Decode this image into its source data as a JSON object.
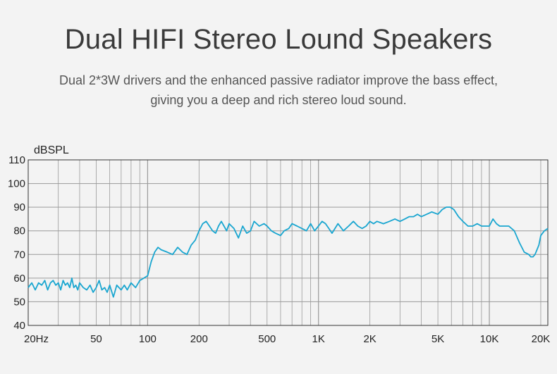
{
  "header": {
    "title": "Dual HIFI Stereo Lound Speakers",
    "subtitle_line1": "Dual 2*3W drivers and the enhanced passive radiator improve the bass effect,",
    "subtitle_line2": "giving you a deep and rich stereo loud sound."
  },
  "chart_data": {
    "type": "line",
    "title": "",
    "xlabel": "",
    "ylabel": "dBSPL",
    "x_scale": "log",
    "xlim": [
      20,
      22000
    ],
    "ylim": [
      40,
      110
    ],
    "grid": true,
    "y_ticks": [
      40,
      50,
      60,
      70,
      80,
      90,
      100,
      110
    ],
    "y_tick_labels": [
      "40",
      "50",
      "60",
      "70",
      "80",
      "90",
      "100",
      "110"
    ],
    "x_ticks": [
      20,
      50,
      100,
      200,
      500,
      1000,
      2000,
      5000,
      10000,
      20000
    ],
    "x_tick_labels": [
      "20Hz",
      "50",
      "100",
      "200",
      "500",
      "1K",
      "2K",
      "5K",
      "10K",
      "20K"
    ],
    "line_color": "#1aa6d0",
    "grid_color": "#9a9a9a",
    "series": [
      {
        "x": [
          20,
          21,
          22,
          23,
          24,
          25,
          26,
          27,
          28,
          29,
          30,
          31,
          32,
          33,
          34,
          35,
          36,
          37,
          38,
          39,
          40,
          42,
          44,
          46,
          48,
          50,
          52,
          54,
          56,
          58,
          60,
          63,
          66,
          70,
          73,
          76,
          80,
          85,
          90,
          95,
          100,
          105,
          110,
          115,
          120,
          130,
          140,
          150,
          160,
          170,
          180,
          190,
          200,
          210,
          220,
          230,
          240,
          250,
          260,
          270,
          280,
          290,
          300,
          320,
          340,
          360,
          380,
          400,
          420,
          450,
          480,
          500,
          530,
          560,
          600,
          630,
          670,
          700,
          750,
          800,
          850,
          900,
          950,
          1000,
          1050,
          1100,
          1150,
          1200,
          1300,
          1400,
          1500,
          1600,
          1700,
          1800,
          1900,
          2000,
          2100,
          2200,
          2400,
          2600,
          2800,
          3000,
          3200,
          3400,
          3600,
          3800,
          4000,
          4300,
          4600,
          5000,
          5300,
          5600,
          5900,
          6200,
          6600,
          7000,
          7500,
          8000,
          8500,
          9000,
          9500,
          10000,
          10500,
          11000,
          11500,
          12000,
          13000,
          14000,
          15000,
          16000,
          17000,
          17500,
          18000,
          18500,
          19000,
          19500,
          20000,
          21000,
          22000
        ],
        "y": [
          56,
          58,
          55,
          58,
          57,
          59,
          55,
          58,
          59,
          57,
          58,
          55,
          59,
          57,
          58,
          56,
          60,
          56,
          57,
          55,
          58,
          56,
          55,
          57,
          54,
          56,
          59,
          55,
          56,
          54,
          57,
          52,
          57,
          55,
          57,
          55,
          58,
          56,
          59,
          60,
          61,
          67,
          71,
          73,
          72,
          71,
          70,
          73,
          71,
          70,
          74,
          76,
          80,
          83,
          84,
          82,
          80,
          79,
          82,
          84,
          82,
          80,
          83,
          81,
          77,
          82,
          79,
          80,
          84,
          82,
          83,
          82,
          80,
          79,
          78,
          80,
          81,
          83,
          82,
          81,
          80,
          83,
          80,
          82,
          84,
          83,
          81,
          79,
          83,
          80,
          82,
          84,
          82,
          81,
          82,
          84,
          83,
          84,
          83,
          84,
          85,
          84,
          85,
          86,
          86,
          87,
          86,
          87,
          88,
          87,
          89,
          90,
          90,
          89,
          86,
          84,
          82,
          82,
          83,
          82,
          82,
          82,
          85,
          83,
          82,
          82,
          82,
          80,
          75,
          71,
          70,
          69,
          69,
          70,
          72,
          74,
          78,
          80,
          81
        ]
      }
    ]
  }
}
